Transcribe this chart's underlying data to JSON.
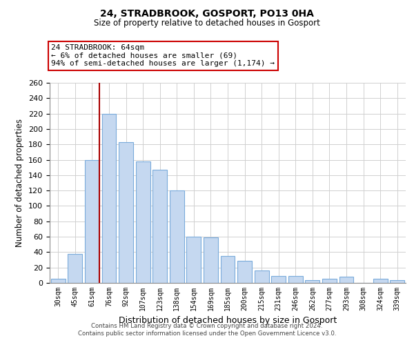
{
  "title": "24, STRADBROOK, GOSPORT, PO13 0HA",
  "subtitle": "Size of property relative to detached houses in Gosport",
  "xlabel": "Distribution of detached houses by size in Gosport",
  "ylabel": "Number of detached properties",
  "categories": [
    "30sqm",
    "45sqm",
    "61sqm",
    "76sqm",
    "92sqm",
    "107sqm",
    "123sqm",
    "138sqm",
    "154sqm",
    "169sqm",
    "185sqm",
    "200sqm",
    "215sqm",
    "231sqm",
    "246sqm",
    "262sqm",
    "277sqm",
    "293sqm",
    "308sqm",
    "324sqm",
    "339sqm"
  ],
  "values": [
    5,
    38,
    160,
    220,
    183,
    158,
    147,
    120,
    60,
    59,
    35,
    29,
    16,
    9,
    9,
    4,
    5,
    8,
    0,
    5,
    4
  ],
  "bar_color": "#c5d8f0",
  "bar_edge_color": "#7aabdb",
  "vline_x_index": 2,
  "vline_color": "#aa0000",
  "annotation_text": "24 STRADBROOK: 64sqm\n← 6% of detached houses are smaller (69)\n94% of semi-detached houses are larger (1,174) →",
  "annotation_box_color": "#ffffff",
  "annotation_box_edge_color": "#cc0000",
  "ylim": [
    0,
    260
  ],
  "yticks": [
    0,
    20,
    40,
    60,
    80,
    100,
    120,
    140,
    160,
    180,
    200,
    220,
    240,
    260
  ],
  "footer_line1": "Contains HM Land Registry data © Crown copyright and database right 2024.",
  "footer_line2": "Contains public sector information licensed under the Open Government Licence v3.0.",
  "background_color": "#ffffff",
  "grid_color": "#d0d0d0"
}
